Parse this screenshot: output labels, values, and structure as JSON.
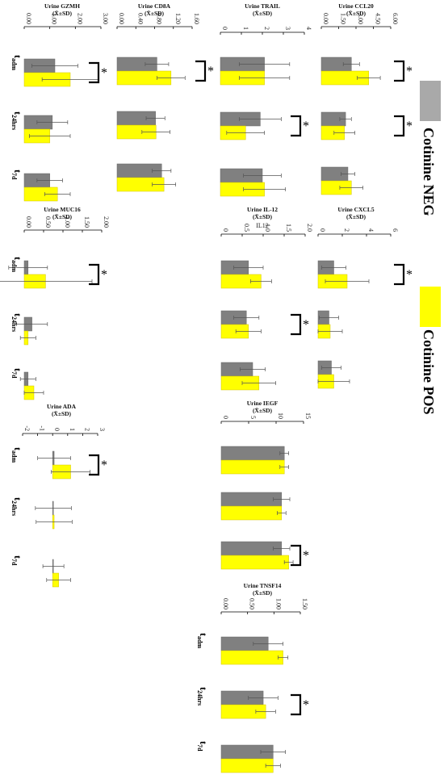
{
  "legend": {
    "neg_label": "Cotinine NEG",
    "pos_label": "Cotinine POS",
    "neg_color": "#808080",
    "pos_color": "#ffff00"
  },
  "chart_data": [
    {
      "id": "gzmh",
      "type": "bar",
      "title": "Urine GZMH",
      "subtitle": "(X̄±SD)",
      "ticks": [
        "0.00",
        "1.00",
        "2.00",
        "3.00"
      ],
      "xlim": [
        0,
        3
      ],
      "categories": [
        "adm",
        "24hrs",
        "7d"
      ],
      "series": [
        {
          "name": "Cotinine NEG",
          "values": [
            1.2,
            1.1,
            1.0
          ],
          "sd": [
            0.9,
            0.6,
            0.5
          ]
        },
        {
          "name": "Cotinine POS",
          "values": [
            1.8,
            1.0,
            1.3
          ],
          "sd": [
            1.1,
            0.8,
            0.5
          ]
        }
      ],
      "significant": [
        "adm"
      ]
    },
    {
      "id": "cd8a",
      "type": "bar",
      "title": "Urine CD8A",
      "subtitle": "(X̄±SD)",
      "ticks": [
        "0.00",
        "0.40",
        "0.80",
        "1.20",
        "1.60"
      ],
      "xlim": [
        0,
        1.6
      ],
      "categories": [
        "adm",
        "24hrs",
        "7d"
      ],
      "series": [
        {
          "name": "Cotinine NEG",
          "values": [
            0.85,
            0.82,
            0.95
          ],
          "sd": [
            0.25,
            0.2,
            0.2
          ]
        },
        {
          "name": "Cotinine POS",
          "values": [
            1.15,
            0.83,
            1.0
          ],
          "sd": [
            0.3,
            0.3,
            0.25
          ]
        }
      ],
      "significant": [
        "adm"
      ]
    },
    {
      "id": "trail",
      "type": "bar",
      "title": "Urine TRAIL",
      "subtitle": "(X̄±SD)",
      "ticks": [
        "0",
        "1",
        "2",
        "3",
        "4"
      ],
      "xlim": [
        0,
        4
      ],
      "categories": [
        "adm",
        "24hrs",
        "7d"
      ],
      "series": [
        {
          "name": "Cotinine NEG",
          "values": [
            2.1,
            1.9,
            2.0
          ],
          "sd": [
            1.2,
            1.0,
            0.9
          ]
        },
        {
          "name": "Cotinine POS",
          "values": [
            2.1,
            1.2,
            2.1
          ],
          "sd": [
            1.2,
            0.9,
            1.0
          ]
        }
      ],
      "significant": [
        "24hrs"
      ]
    },
    {
      "id": "ccl20",
      "type": "bar",
      "title": "Urine CCL20",
      "subtitle": "(X̄±SD)",
      "ticks": [
        "0.00",
        "1.50",
        "3.00",
        "4.50",
        "6.00"
      ],
      "xlim": [
        0,
        6
      ],
      "categories": [
        "adm",
        "24hrs",
        "7d"
      ],
      "series": [
        {
          "name": "Cotinine NEG",
          "values": [
            2.6,
            2.1,
            2.3
          ],
          "sd": [
            0.7,
            0.5,
            0.6
          ]
        },
        {
          "name": "Cotinine POS",
          "values": [
            4.1,
            2.0,
            2.6
          ],
          "sd": [
            1.0,
            0.9,
            1.0
          ]
        }
      ],
      "significant": [
        "adm",
        "24hrs"
      ]
    },
    {
      "id": "muc16",
      "type": "bar",
      "title": "Urine MUC16",
      "subtitle": "(X̄±SD)",
      "ticks": [
        "0.00",
        "0.50",
        "1.00",
        "1.50",
        "2.00"
      ],
      "xlim": [
        0,
        2
      ],
      "categories": [
        "adm",
        "24hrs",
        "7d"
      ],
      "series": [
        {
          "name": "Cotinine NEG",
          "values": [
            0.1,
            0.2,
            0.1
          ],
          "sd": [
            0.5,
            0.4,
            0.2
          ]
        },
        {
          "name": "Cotinine POS",
          "values": [
            0.55,
            0.1,
            0.25
          ],
          "sd": [
            1.2,
            0.2,
            0.25
          ]
        }
      ],
      "significant": [
        "adm"
      ]
    },
    {
      "id": "il12",
      "type": "bar",
      "title": "Urine IL-12",
      "subtitle": "(X̄±SD)",
      "extra_label": "IL12",
      "ticks": [
        "0",
        "0.5",
        "1.0",
        "1.5",
        "2.0"
      ],
      "xlim": [
        0,
        2
      ],
      "categories": [
        "adm",
        "24hrs",
        "7d"
      ],
      "series": [
        {
          "name": "Cotinine NEG",
          "values": [
            0.65,
            0.6,
            0.75
          ],
          "sd": [
            0.35,
            0.3,
            0.3
          ]
        },
        {
          "name": "Cotinine POS",
          "values": [
            0.95,
            0.65,
            0.9
          ],
          "sd": [
            0.25,
            0.3,
            0.4
          ]
        }
      ],
      "significant": [
        "24hrs"
      ]
    },
    {
      "id": "cxcl5",
      "type": "bar",
      "title": "Urine CXCL5",
      "subtitle": "(X̄±SD)",
      "ticks": [
        "0",
        "2",
        "4",
        "6"
      ],
      "xlim": [
        0,
        6
      ],
      "categories": [
        "adm",
        "24hrs",
        "7d"
      ],
      "series": [
        {
          "name": "Cotinine NEG",
          "values": [
            1.3,
            0.9,
            1.1
          ],
          "sd": [
            1.0,
            0.8,
            0.8
          ]
        },
        {
          "name": "Cotinine POS",
          "values": [
            2.4,
            1.0,
            1.3
          ],
          "sd": [
            1.8,
            1.0,
            1.3
          ]
        }
      ],
      "significant": [
        "adm"
      ]
    },
    {
      "id": "ada",
      "type": "bar",
      "title": "Urine ADA",
      "subtitle": "(X̄±SD)",
      "ticks": [
        "-2",
        "-1",
        "0",
        "1",
        "2",
        "3"
      ],
      "xlim": [
        -2,
        3
      ],
      "categories": [
        "adm",
        "24hrs",
        "7d"
      ],
      "series": [
        {
          "name": "Cotinine NEG",
          "values": [
            0.1,
            0.05,
            0.05
          ],
          "sd": [
            1.1,
            1.2,
            0.7
          ]
        },
        {
          "name": "Cotinine POS",
          "values": [
            1.2,
            0.1,
            0.4
          ],
          "sd": [
            1.3,
            1.2,
            0.8
          ]
        }
      ],
      "significant": [
        "adm"
      ]
    },
    {
      "id": "iegf",
      "type": "bar",
      "title": "Urine IEGF",
      "subtitle": "(X̄±SD)",
      "ticks": [
        "0",
        "5",
        "10",
        "15"
      ],
      "xlim": [
        0,
        15
      ],
      "categories": [
        "adm",
        "24hrs",
        "7d"
      ],
      "series": [
        {
          "name": "Cotinine NEG",
          "values": [
            11.5,
            11.0,
            11.0
          ],
          "sd": [
            0.8,
            1.5,
            1.5
          ]
        },
        {
          "name": "Cotinine POS",
          "values": [
            11.5,
            11.0,
            12.3
          ],
          "sd": [
            0.8,
            0.8,
            0.8
          ]
        }
      ],
      "significant": [
        "7d"
      ]
    },
    {
      "id": "tnsf14",
      "type": "bar",
      "title": "Urine TNSF14",
      "subtitle": "(X̄±SD)",
      "ticks": [
        "0.00",
        "0.50",
        "1.00",
        "1.50"
      ],
      "xlim": [
        0,
        1.6
      ],
      "categories": [
        "adm",
        "24hrs",
        "7d"
      ],
      "series": [
        {
          "name": "Cotinine NEG",
          "values": [
            0.95,
            0.85,
            1.05
          ],
          "sd": [
            0.3,
            0.3,
            0.25
          ]
        },
        {
          "name": "Cotinine POS",
          "values": [
            1.25,
            0.9,
            1.05
          ],
          "sd": [
            0.1,
            0.2,
            0.15
          ]
        }
      ],
      "significant": [
        "24hrs"
      ]
    }
  ]
}
